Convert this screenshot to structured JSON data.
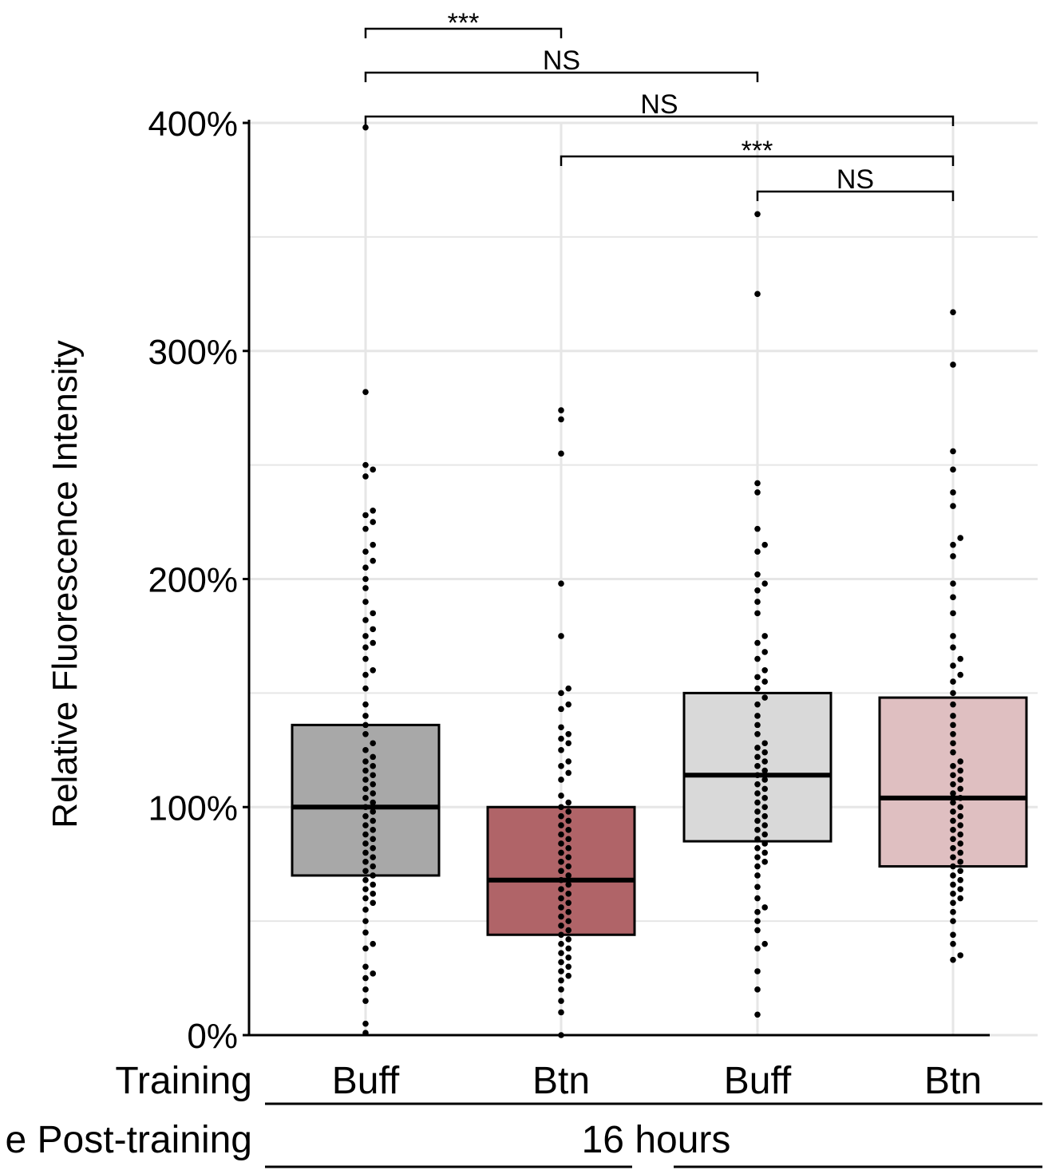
{
  "chart_data": {
    "type": "box",
    "ylabel": "Relative Fluorescence Intensity",
    "y_unit": "%",
    "ylim": [
      0,
      400
    ],
    "yticks": [
      0,
      100,
      200,
      300,
      400
    ],
    "ytick_labels": [
      "0%",
      "100%",
      "200%",
      "300%",
      "400%"
    ],
    "grid": true,
    "categories": [
      "Buff",
      "Btn",
      "Buff",
      "Btn"
    ],
    "row_labels": {
      "training": "Training",
      "time": "e Post-training"
    },
    "time_group_label": "16 hours",
    "colors": [
      "#a8a8a8",
      "#b06468",
      "#d9d9d9",
      "#dfbfc1"
    ],
    "boxes": [
      {
        "q1": 70,
        "median": 100,
        "q3": 136
      },
      {
        "q1": 44,
        "median": 68,
        "q3": 100
      },
      {
        "q1": 85,
        "median": 114,
        "q3": 150
      },
      {
        "q1": 74,
        "median": 104,
        "q3": 148
      }
    ],
    "points": [
      [
        398,
        282,
        250,
        248,
        245,
        230,
        228,
        225,
        222,
        215,
        212,
        208,
        205,
        200,
        196,
        190,
        185,
        182,
        178,
        175,
        172,
        170,
        165,
        160,
        158,
        152,
        145,
        140,
        136,
        132,
        128,
        125,
        122,
        120,
        118,
        116,
        114,
        112,
        110,
        108,
        106,
        104,
        102,
        100,
        98,
        96,
        94,
        92,
        90,
        88,
        86,
        84,
        82,
        80,
        78,
        76,
        74,
        72,
        70,
        68,
        66,
        64,
        62,
        60,
        58,
        55,
        50,
        45,
        40,
        38,
        30,
        27,
        25,
        20,
        15,
        5,
        1
      ],
      [
        274,
        270,
        255,
        198,
        175,
        152,
        150,
        145,
        143,
        135,
        132,
        130,
        128,
        125,
        120,
        118,
        115,
        112,
        105,
        102,
        100,
        98,
        96,
        94,
        92,
        90,
        88,
        86,
        84,
        82,
        80,
        78,
        76,
        74,
        72,
        70,
        68,
        66,
        64,
        62,
        60,
        58,
        56,
        54,
        52,
        50,
        48,
        46,
        44,
        42,
        40,
        38,
        36,
        34,
        32,
        30,
        28,
        26,
        24,
        20,
        15,
        10,
        0
      ],
      [
        360,
        325,
        242,
        238,
        222,
        215,
        212,
        202,
        198,
        195,
        190,
        185,
        175,
        172,
        168,
        165,
        160,
        157,
        155,
        152,
        148,
        145,
        140,
        136,
        132,
        128,
        126,
        124,
        122,
        120,
        118,
        116,
        114,
        112,
        110,
        108,
        106,
        104,
        102,
        100,
        98,
        96,
        94,
        92,
        90,
        88,
        86,
        84,
        82,
        80,
        78,
        76,
        74,
        70,
        65,
        60,
        56,
        54,
        50,
        46,
        40,
        38,
        28,
        20,
        9
      ],
      [
        317,
        294,
        256,
        248,
        238,
        232,
        218,
        215,
        210,
        198,
        192,
        185,
        175,
        170,
        165,
        162,
        158,
        155,
        150,
        145,
        140,
        136,
        132,
        128,
        124,
        120,
        118,
        116,
        114,
        112,
        110,
        108,
        106,
        104,
        102,
        100,
        98,
        96,
        94,
        92,
        90,
        88,
        86,
        84,
        82,
        80,
        78,
        76,
        74,
        72,
        70,
        68,
        66,
        64,
        62,
        60,
        58,
        54,
        50,
        44,
        40,
        35,
        33
      ]
    ],
    "comparisons": [
      {
        "from": 0,
        "to": 1,
        "label": "***"
      },
      {
        "from": 0,
        "to": 2,
        "label": "NS"
      },
      {
        "from": 0,
        "to": 3,
        "label": "NS"
      },
      {
        "from": 1,
        "to": 3,
        "label": "***"
      },
      {
        "from": 2,
        "to": 3,
        "label": "NS"
      }
    ]
  }
}
